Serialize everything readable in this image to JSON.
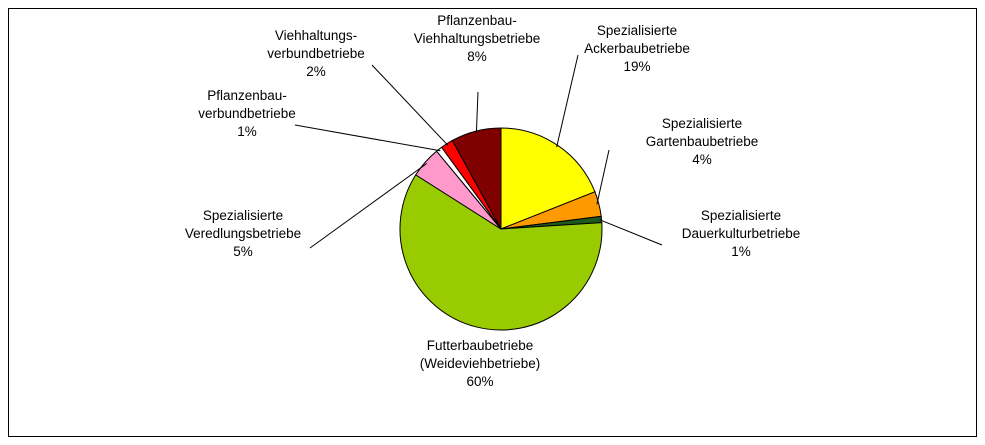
{
  "chart_data": {
    "type": "pie",
    "categories": [
      "Spezialisierte\nAckerbaubetriebe",
      "Spezialisierte\nGartenbaubetriebe",
      "Spezialisierte\nDauerkulturbetriebe",
      "Futterbaubetriebe\n(Weideviehbetriebe)",
      "Spezialisierte\nVeredlungsbetriebe",
      "Pflanzenbau-\nverbundbetriebe",
      "Viehhaltungs-\nverbundbetriebe",
      "Pflanzenbau-\nViehhaltungsbetriebe"
    ],
    "values": [
      19,
      4,
      1,
      60,
      5,
      1,
      2,
      8
    ],
    "value_labels": [
      "19%",
      "4%",
      "1%",
      "60%",
      "5%",
      "1%",
      "2%",
      "8%"
    ],
    "colors": [
      "#ffff00",
      "#ff9900",
      "#1e5a1e",
      "#99cc00",
      "#ff99cc",
      "#ffffff",
      "#ff0000",
      "#800000"
    ]
  }
}
